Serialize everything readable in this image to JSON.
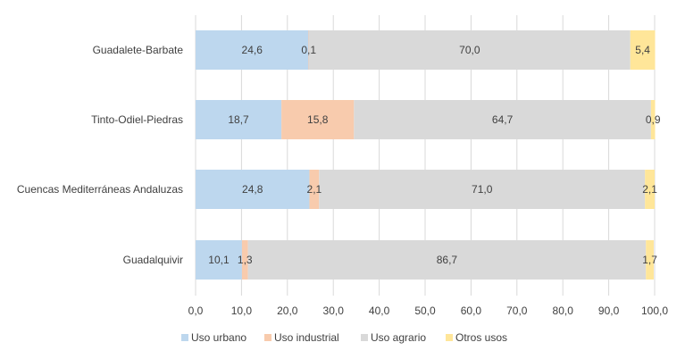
{
  "chart_data": {
    "type": "bar",
    "orientation": "horizontal",
    "stacked": true,
    "categories": [
      "Guadalete-Barbate",
      "Tinto-Odiel-Piedras",
      "Cuencas Mediterráneas  Andaluzas",
      "Guadalquivir"
    ],
    "series": [
      {
        "name": "Uso urbano",
        "color": "#bdd7ee",
        "values": [
          24.6,
          18.7,
          24.8,
          10.1
        ],
        "labels": [
          "24,6",
          "18,7",
          "24,8",
          "10,1"
        ]
      },
      {
        "name": "Uso industrial",
        "color": "#f8cbad",
        "values": [
          0.1,
          15.8,
          2.1,
          1.3
        ],
        "labels": [
          "0,1",
          "15,8",
          "2,1",
          "1,3"
        ]
      },
      {
        "name": "Uso agrario",
        "color": "#d9d9d9",
        "values": [
          70.0,
          64.7,
          71.0,
          86.7
        ],
        "labels": [
          "70,0",
          "64,7",
          "71,0",
          "86,7"
        ]
      },
      {
        "name": "Otros usos",
        "color": "#ffe699",
        "values": [
          5.4,
          0.9,
          2.1,
          1.7
        ],
        "labels": [
          "5,4",
          "0,9",
          "2,1",
          "1,7"
        ]
      }
    ],
    "xlim": [
      0,
      100
    ],
    "xticks": [
      0,
      10,
      20,
      30,
      40,
      50,
      60,
      70,
      80,
      90,
      100
    ],
    "xtick_labels": [
      "0,0",
      "10,0",
      "20,0",
      "30,0",
      "40,0",
      "50,0",
      "60,0",
      "70,0",
      "80,0",
      "90,0",
      "100,0"
    ],
    "grid": true,
    "legend_position": "bottom",
    "title": "",
    "xlabel": "",
    "ylabel": ""
  }
}
